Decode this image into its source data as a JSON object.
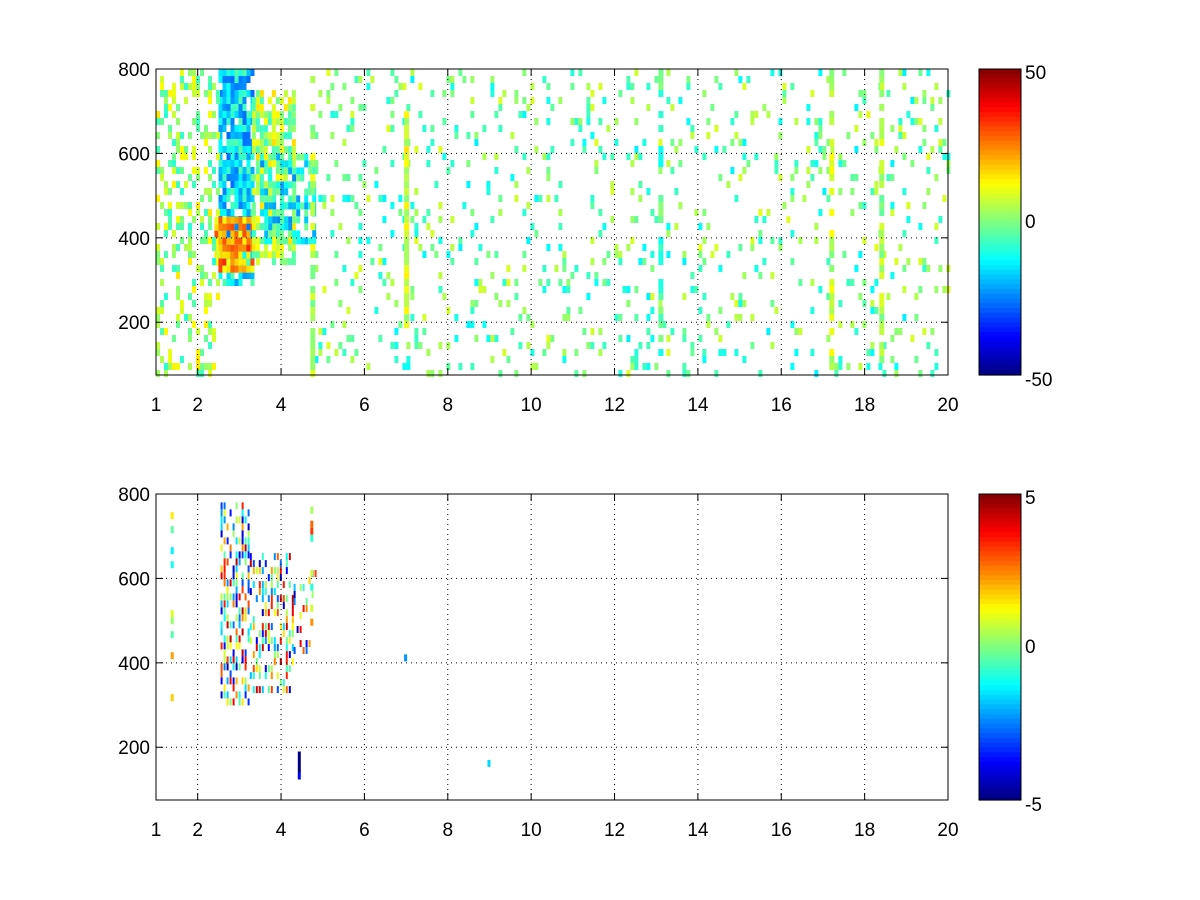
{
  "chart_data": [
    {
      "type": "heatmap",
      "title": "",
      "xlabel": "",
      "ylabel": "",
      "xlim": [
        1,
        20
      ],
      "ylim": [
        75,
        800
      ],
      "grid": true,
      "colormap": "jet",
      "x_ticks": [
        1,
        2,
        4,
        6,
        8,
        10,
        12,
        14,
        16,
        18,
        20
      ],
      "x_tick_labels": [
        "1",
        "2",
        "4",
        "6",
        "8",
        "10",
        "12",
        "14",
        "16",
        "18",
        "20"
      ],
      "y_ticks": [
        200,
        400,
        600,
        800
      ],
      "y_tick_labels": [
        "200",
        "400",
        "600",
        "800"
      ],
      "colorbar": {
        "min": -50,
        "max": 50,
        "tick_labels": [
          "50",
          "0",
          "-50"
        ]
      },
      "regions": [
        {
          "x": [
            2.5,
            3.3
          ],
          "y": [
            300,
            800
          ],
          "value": -15,
          "density": 0.85
        },
        {
          "x": [
            2.4,
            3.3
          ],
          "y": [
            330,
            450
          ],
          "value": 22,
          "density": 0.9
        },
        {
          "x": [
            3.3,
            4.3
          ],
          "y": [
            350,
            750
          ],
          "value": 4,
          "density": 0.75
        },
        {
          "x": [
            3.5,
            4.8
          ],
          "y": [
            400,
            600
          ],
          "value": -12,
          "density": 0.6
        },
        {
          "x": [
            1.0,
            2.5
          ],
          "y": [
            75,
            800
          ],
          "value": 3,
          "density": 0.35
        },
        {
          "x": [
            4.8,
            20.0
          ],
          "y": [
            75,
            800
          ],
          "value": -2,
          "density": 0.12
        }
      ],
      "stripes": [
        {
          "x": 4.75,
          "value": 5,
          "density": 0.6
        },
        {
          "x": 7.0,
          "y": [
            200,
            700
          ],
          "value": 8,
          "density": 0.9
        },
        {
          "x": 13.1,
          "value": -5,
          "density": 0.5
        },
        {
          "x": 17.2,
          "value": 6,
          "density": 0.55
        },
        {
          "x": 18.4,
          "value": 4,
          "density": 0.75
        }
      ]
    },
    {
      "type": "heatmap",
      "title": "",
      "xlabel": "",
      "ylabel": "",
      "xlim": [
        1,
        20
      ],
      "ylim": [
        75,
        800
      ],
      "grid": true,
      "colormap": "jet",
      "x_ticks": [
        1,
        2,
        4,
        6,
        8,
        10,
        12,
        14,
        16,
        18,
        20
      ],
      "x_tick_labels": [
        "1",
        "2",
        "4",
        "6",
        "8",
        "10",
        "12",
        "14",
        "16",
        "18",
        "20"
      ],
      "y_ticks": [
        200,
        400,
        600,
        800
      ],
      "y_tick_labels": [
        "200",
        "400",
        "600",
        "800"
      ],
      "colorbar": {
        "min": -5,
        "max": 5,
        "tick_labels": [
          "5",
          "0",
          "-5"
        ]
      },
      "regions": [
        {
          "x": [
            2.55,
            3.25
          ],
          "y": [
            300,
            780
          ],
          "value": 0,
          "density": 0.55
        },
        {
          "x": [
            3.25,
            4.3
          ],
          "y": [
            330,
            660
          ],
          "value": 0,
          "density": 0.45
        },
        {
          "x": [
            4.3,
            5.0
          ],
          "y": [
            430,
            620
          ],
          "value": 0,
          "density": 0.2
        }
      ],
      "stripes": [
        {
          "x": 1.4,
          "y": [
            300,
            790
          ],
          "value": 0,
          "density": 0.35
        },
        {
          "x": 4.75,
          "y": [
            480,
            770
          ],
          "value": 1,
          "density": 0.4
        },
        {
          "x": 4.45,
          "y": [
            140,
            190
          ],
          "value": -4,
          "density": 0.8
        },
        {
          "x": 9.0,
          "y": [
            150,
            170
          ],
          "value": -1,
          "density": 0.8
        },
        {
          "x": 7.0,
          "y": [
            410,
            420
          ],
          "value": -3,
          "density": 1.0
        }
      ]
    }
  ]
}
